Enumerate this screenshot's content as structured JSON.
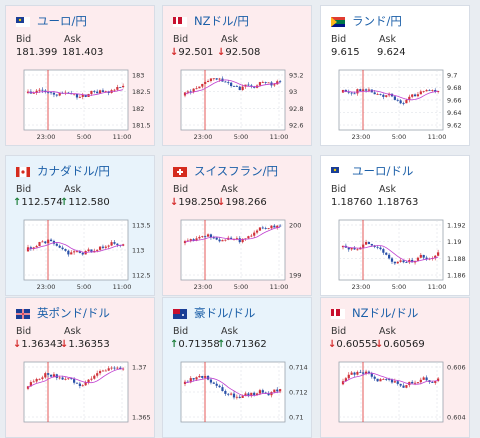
{
  "cards": [
    {
      "pair": "ユーロ/円",
      "flag": "eu-jp-flag",
      "bg": "pink",
      "bid_label": "Bid",
      "ask_label": "Ask",
      "bid": "181.399",
      "ask": "181.403",
      "dir": "none",
      "yticks": [
        "183",
        "182.5",
        "182",
        "181.5"
      ],
      "xticks": [
        "23:00",
        "5:00",
        "11:00"
      ]
    },
    {
      "pair": "NZドル/円",
      "flag": "nz-jp-flag",
      "bg": "pink",
      "bid_label": "Bid",
      "ask_label": "Ask",
      "bid": "92.501",
      "ask": "92.508",
      "dir": "down",
      "yticks": [
        "93.2",
        "93",
        "92.8",
        "92.6"
      ],
      "xticks": [
        "23:00",
        "5:00",
        "11:00"
      ]
    },
    {
      "pair": "ランド/円",
      "flag": "za-jp-flag",
      "bg": "white",
      "bid_label": "Bid",
      "ask_label": "Ask",
      "bid": "9.615",
      "ask": "9.624",
      "dir": "none",
      "yticks": [
        "9.7",
        "9.68",
        "9.66",
        "9.64",
        "9.62"
      ],
      "xticks": [
        "23:00",
        "5:00",
        "11:00"
      ]
    },
    {
      "pair": "カナダドル/円",
      "flag": "ca-jp-flag",
      "bg": "blue",
      "bid_label": "Bid",
      "ask_label": "Ask",
      "bid": "112.574",
      "ask": "112.580",
      "dir": "up",
      "yticks": [
        "113.5",
        "113",
        "112.5"
      ],
      "xticks": [
        "23:00",
        "5:00",
        "11:00"
      ]
    },
    {
      "pair": "スイスフラン/円",
      "flag": "ch-jp-flag",
      "bg": "pink",
      "bid_label": "Bid",
      "ask_label": "Ask",
      "bid": "198.250",
      "ask": "198.266",
      "dir": "down",
      "yticks": [
        "200",
        "199"
      ],
      "xticks": [
        "23:00",
        "5:00",
        "11:00"
      ]
    },
    {
      "pair": "ユーロ/ドル",
      "flag": "eu-us-flag",
      "bg": "white",
      "bid_label": "Bid",
      "ask_label": "Ask",
      "bid": "1.18760",
      "ask": "1.18763",
      "dir": "none",
      "yticks": [
        "1.192",
        "1.19",
        "1.188",
        "1.186"
      ],
      "xticks": [
        "23:00",
        "5:00",
        "11:00"
      ]
    },
    {
      "pair": "英ポンド/ドル",
      "flag": "gb-us-flag",
      "bg": "pink",
      "bid_label": "Bid",
      "ask_label": "Ask",
      "bid": "1.36343",
      "ask": "1.36353",
      "dir": "down",
      "yticks": [
        "1.37",
        "1.365"
      ],
      "xticks": []
    },
    {
      "pair": "豪ドル/ドル",
      "flag": "au-us-flag",
      "bg": "blue",
      "bid_label": "Bid",
      "ask_label": "Ask",
      "bid": "0.71358",
      "ask": "0.71362",
      "dir": "up",
      "yticks": [
        "0.714",
        "0.712",
        "0.71"
      ],
      "xticks": []
    },
    {
      "pair": "NZドル/ドル",
      "flag": "nz-us-flag",
      "bg": "pink",
      "bid_label": "Bid",
      "ask_label": "Ask",
      "bid": "0.60555",
      "ask": "0.60569",
      "dir": "down",
      "yticks": [
        "0.606",
        "0.604"
      ],
      "xticks": []
    }
  ],
  "colors": {
    "title": "#1b5fa8",
    "up_candle": "#d0323a",
    "down_candle": "#2a50a8",
    "ma": "#c040d0",
    "marker": "#e03030"
  }
}
